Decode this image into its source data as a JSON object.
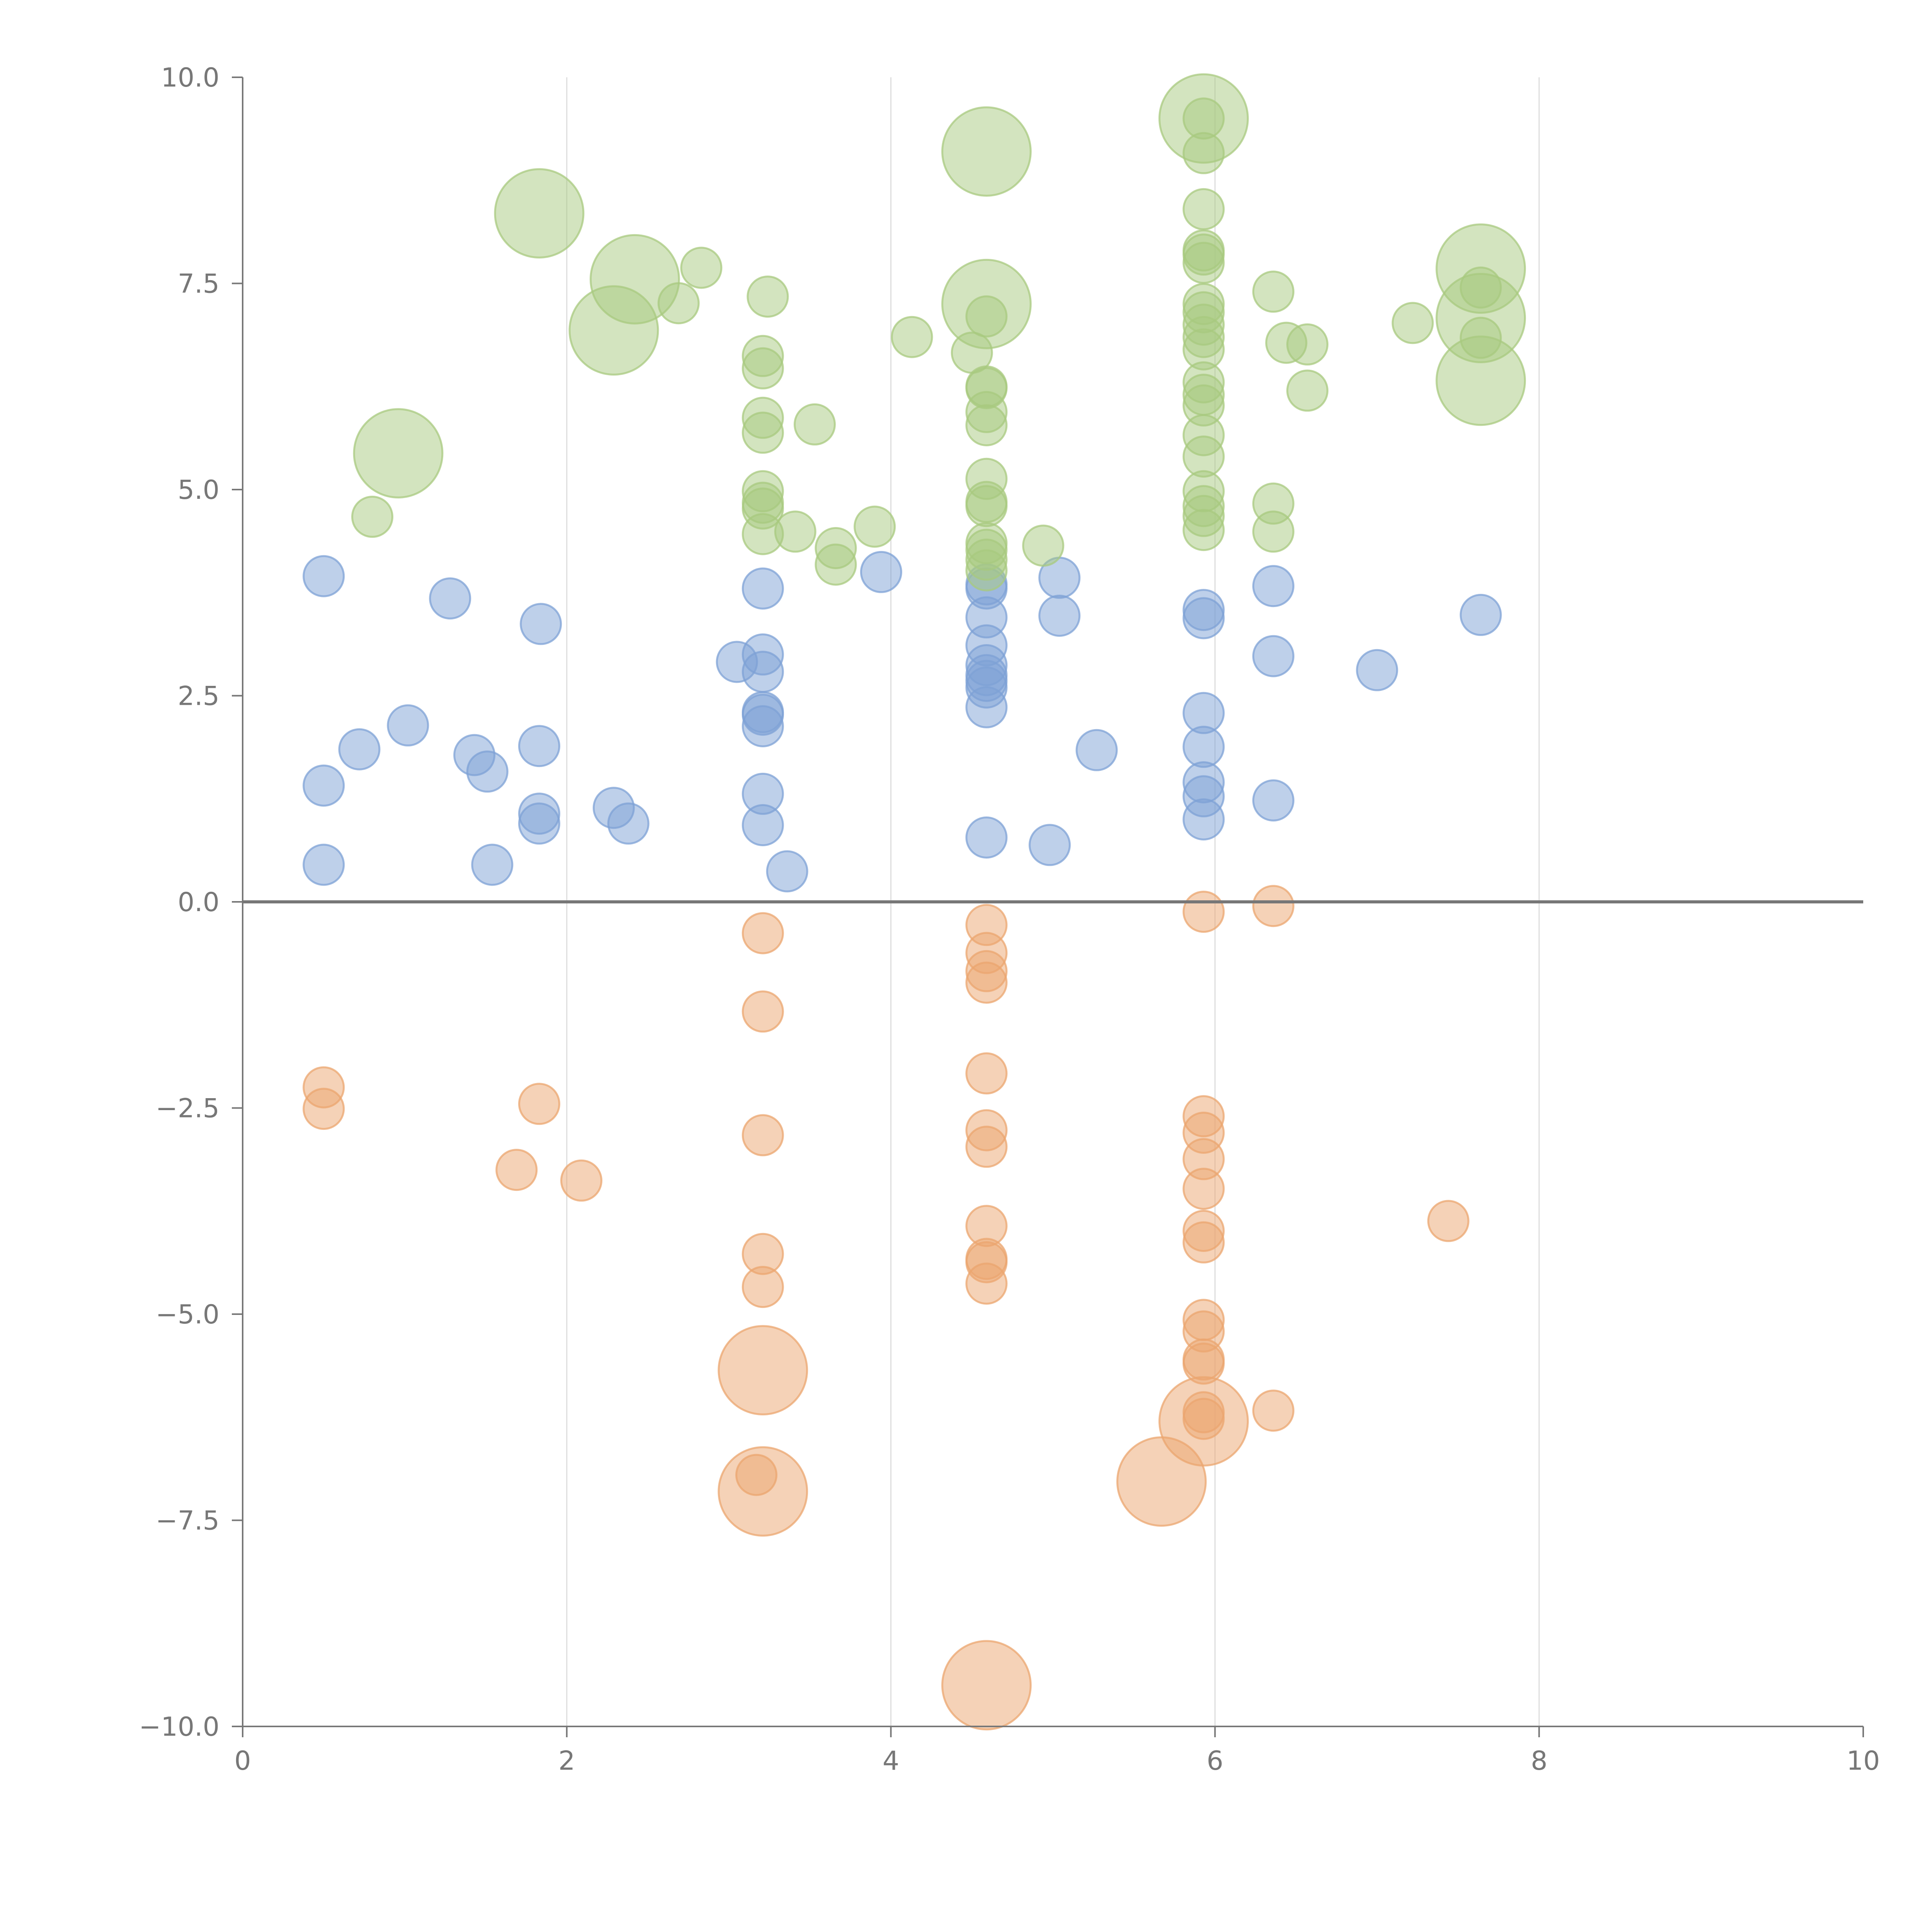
{
  "chart_data": {
    "type": "scatter",
    "title": "",
    "xlabel": "",
    "ylabel": "",
    "xlim": [
      0,
      10
    ],
    "ylim": [
      -10,
      10
    ],
    "x_ticks": [
      0,
      2,
      4,
      6,
      8,
      10
    ],
    "x_tick_labels": [
      "0",
      "2",
      "4",
      "6",
      "8",
      "10"
    ],
    "y_ticks": [
      -10,
      -7.5,
      -5,
      -2.5,
      0,
      2.5,
      5,
      7.5,
      10
    ],
    "y_tick_labels": [
      "−10.0",
      "−7.5",
      "−5.0",
      "−2.5",
      "0.0",
      "2.5",
      "5.0",
      "7.5",
      "10.0"
    ],
    "grid": {
      "vertical": true,
      "horizontal": false
    },
    "zero_line": true,
    "legend": "none",
    "series": [
      {
        "color": "#7ea2d6",
        "points": [
          {
            "x": 0.5,
            "y": 3.95,
            "s": 1
          },
          {
            "x": 1.28,
            "y": 3.68,
            "s": 1
          },
          {
            "x": 1.84,
            "y": 3.37,
            "s": 1
          },
          {
            "x": 0.72,
            "y": 1.85,
            "s": 1
          },
          {
            "x": 1.02,
            "y": 2.14,
            "s": 1
          },
          {
            "x": 1.43,
            "y": 1.78,
            "s": 1
          },
          {
            "x": 1.51,
            "y": 1.58,
            "s": 1
          },
          {
            "x": 1.83,
            "y": 1.89,
            "s": 1
          },
          {
            "x": 0.5,
            "y": 1.41,
            "s": 1
          },
          {
            "x": 1.83,
            "y": 1.07,
            "s": 1
          },
          {
            "x": 1.83,
            "y": 0.95,
            "s": 1
          },
          {
            "x": 2.29,
            "y": 1.14,
            "s": 1
          },
          {
            "x": 2.38,
            "y": 0.95,
            "s": 1
          },
          {
            "x": 0.5,
            "y": 0.45,
            "s": 1
          },
          {
            "x": 1.54,
            "y": 0.45,
            "s": 1
          },
          {
            "x": 3.05,
            "y": 2.91,
            "s": 1
          },
          {
            "x": 3.21,
            "y": 3.8,
            "s": 1
          },
          {
            "x": 3.21,
            "y": 3.0,
            "s": 1
          },
          {
            "x": 3.21,
            "y": 2.79,
            "s": 1
          },
          {
            "x": 3.21,
            "y": 2.3,
            "s": 1
          },
          {
            "x": 3.21,
            "y": 2.27,
            "s": 1
          },
          {
            "x": 3.21,
            "y": 2.13,
            "s": 1
          },
          {
            "x": 3.21,
            "y": 1.31,
            "s": 1
          },
          {
            "x": 3.21,
            "y": 0.93,
            "s": 1
          },
          {
            "x": 3.36,
            "y": 0.37,
            "s": 1
          },
          {
            "x": 3.94,
            "y": 4.0,
            "s": 1
          },
          {
            "x": 4.59,
            "y": 3.85,
            "s": 1
          },
          {
            "x": 4.59,
            "y": 3.8,
            "s": 1
          },
          {
            "x": 4.59,
            "y": 3.45,
            "s": 1
          },
          {
            "x": 4.59,
            "y": 3.11,
            "s": 1
          },
          {
            "x": 4.59,
            "y": 2.87,
            "s": 1
          },
          {
            "x": 4.59,
            "y": 2.75,
            "s": 1
          },
          {
            "x": 4.59,
            "y": 2.68,
            "s": 1
          },
          {
            "x": 4.59,
            "y": 2.6,
            "s": 1
          },
          {
            "x": 4.59,
            "y": 2.36,
            "s": 1
          },
          {
            "x": 4.59,
            "y": 0.78,
            "s": 1
          },
          {
            "x": 5.04,
            "y": 3.93,
            "s": 1
          },
          {
            "x": 5.04,
            "y": 3.47,
            "s": 1
          },
          {
            "x": 4.98,
            "y": 0.69,
            "s": 1
          },
          {
            "x": 5.27,
            "y": 1.84,
            "s": 1
          },
          {
            "x": 5.93,
            "y": 3.54,
            "s": 1
          },
          {
            "x": 5.93,
            "y": 3.44,
            "s": 1
          },
          {
            "x": 5.93,
            "y": 2.29,
            "s": 1
          },
          {
            "x": 5.93,
            "y": 1.88,
            "s": 1
          },
          {
            "x": 5.93,
            "y": 1.45,
            "s": 1
          },
          {
            "x": 5.93,
            "y": 1.28,
            "s": 1
          },
          {
            "x": 5.93,
            "y": 1.0,
            "s": 1
          },
          {
            "x": 6.36,
            "y": 3.83,
            "s": 1
          },
          {
            "x": 6.36,
            "y": 2.98,
            "s": 1
          },
          {
            "x": 6.36,
            "y": 1.23,
            "s": 1
          },
          {
            "x": 7.0,
            "y": 2.81,
            "s": 1
          },
          {
            "x": 7.64,
            "y": 3.48,
            "s": 1
          }
        ]
      },
      {
        "color": "#eba56f",
        "points": [
          {
            "x": 0.5,
            "y": -2.25,
            "s": 1
          },
          {
            "x": 0.5,
            "y": -2.51,
            "s": 1
          },
          {
            "x": 1.83,
            "y": -2.45,
            "s": 1
          },
          {
            "x": 1.69,
            "y": -3.25,
            "s": 1
          },
          {
            "x": 2.09,
            "y": -3.38,
            "s": 1
          },
          {
            "x": 3.21,
            "y": -0.38,
            "s": 1
          },
          {
            "x": 3.21,
            "y": -1.33,
            "s": 1
          },
          {
            "x": 3.21,
            "y": -2.83,
            "s": 1
          },
          {
            "x": 3.21,
            "y": -4.27,
            "s": 1
          },
          {
            "x": 3.21,
            "y": -4.67,
            "s": 1
          },
          {
            "x": 3.21,
            "y": -5.68,
            "s": 2.2
          },
          {
            "x": 3.21,
            "y": -7.15,
            "s": 2.2
          },
          {
            "x": 3.17,
            "y": -6.95,
            "s": 1
          },
          {
            "x": 4.59,
            "y": -0.28,
            "s": 1
          },
          {
            "x": 4.59,
            "y": -0.62,
            "s": 1
          },
          {
            "x": 4.59,
            "y": -0.84,
            "s": 1
          },
          {
            "x": 4.59,
            "y": -0.98,
            "s": 1
          },
          {
            "x": 4.59,
            "y": -2.08,
            "s": 1
          },
          {
            "x": 4.59,
            "y": -2.77,
            "s": 1
          },
          {
            "x": 4.59,
            "y": -2.97,
            "s": 1
          },
          {
            "x": 4.59,
            "y": -3.93,
            "s": 1
          },
          {
            "x": 4.59,
            "y": -4.33,
            "s": 1
          },
          {
            "x": 4.59,
            "y": -4.37,
            "s": 1
          },
          {
            "x": 4.59,
            "y": -4.63,
            "s": 1
          },
          {
            "x": 4.59,
            "y": -9.5,
            "s": 2.2
          },
          {
            "x": 5.67,
            "y": -7.03,
            "s": 2.2
          },
          {
            "x": 5.93,
            "y": -0.12,
            "s": 1
          },
          {
            "x": 5.93,
            "y": -2.6,
            "s": 1
          },
          {
            "x": 5.93,
            "y": -2.8,
            "s": 1
          },
          {
            "x": 5.93,
            "y": -3.12,
            "s": 1
          },
          {
            "x": 5.93,
            "y": -3.48,
            "s": 1
          },
          {
            "x": 5.93,
            "y": -3.99,
            "s": 1
          },
          {
            "x": 5.93,
            "y": -4.13,
            "s": 1
          },
          {
            "x": 5.93,
            "y": -5.07,
            "s": 1
          },
          {
            "x": 5.93,
            "y": -5.21,
            "s": 1
          },
          {
            "x": 5.93,
            "y": -5.55,
            "s": 1
          },
          {
            "x": 5.93,
            "y": -5.6,
            "s": 1
          },
          {
            "x": 5.93,
            "y": -6.19,
            "s": 1
          },
          {
            "x": 5.93,
            "y": -6.27,
            "s": 1
          },
          {
            "x": 5.93,
            "y": -6.3,
            "s": 2.2
          },
          {
            "x": 6.36,
            "y": -0.05,
            "s": 1
          },
          {
            "x": 6.36,
            "y": -6.17,
            "s": 1
          },
          {
            "x": 7.44,
            "y": -3.87,
            "s": 1
          }
        ]
      },
      {
        "color": "#a8c97f",
        "points": [
          {
            "x": 0.8,
            "y": 4.67,
            "s": 1
          },
          {
            "x": 0.96,
            "y": 5.44,
            "s": 2.2
          },
          {
            "x": 1.83,
            "y": 8.35,
            "s": 2.2
          },
          {
            "x": 2.29,
            "y": 6.93,
            "s": 2.2
          },
          {
            "x": 2.42,
            "y": 7.55,
            "s": 2.2
          },
          {
            "x": 2.69,
            "y": 7.26,
            "s": 1
          },
          {
            "x": 2.83,
            "y": 7.69,
            "s": 1
          },
          {
            "x": 3.21,
            "y": 6.62,
            "s": 1
          },
          {
            "x": 3.21,
            "y": 6.47,
            "s": 1
          },
          {
            "x": 3.21,
            "y": 5.87,
            "s": 1
          },
          {
            "x": 3.21,
            "y": 5.69,
            "s": 1
          },
          {
            "x": 3.21,
            "y": 4.98,
            "s": 1
          },
          {
            "x": 3.21,
            "y": 4.84,
            "s": 1
          },
          {
            "x": 3.21,
            "y": 4.77,
            "s": 1
          },
          {
            "x": 3.21,
            "y": 4.46,
            "s": 1
          },
          {
            "x": 3.24,
            "y": 7.34,
            "s": 1
          },
          {
            "x": 3.41,
            "y": 4.49,
            "s": 1
          },
          {
            "x": 3.53,
            "y": 5.79,
            "s": 1
          },
          {
            "x": 3.66,
            "y": 4.29,
            "s": 1
          },
          {
            "x": 3.66,
            "y": 4.09,
            "s": 1
          },
          {
            "x": 3.9,
            "y": 4.55,
            "s": 1
          },
          {
            "x": 4.13,
            "y": 6.85,
            "s": 1
          },
          {
            "x": 4.5,
            "y": 6.66,
            "s": 1
          },
          {
            "x": 4.59,
            "y": 9.1,
            "s": 2.2
          },
          {
            "x": 4.59,
            "y": 7.25,
            "s": 2.2
          },
          {
            "x": 4.59,
            "y": 7.1,
            "s": 1
          },
          {
            "x": 4.59,
            "y": 6.25,
            "s": 1
          },
          {
            "x": 4.59,
            "y": 6.23,
            "s": 1
          },
          {
            "x": 4.59,
            "y": 5.94,
            "s": 1
          },
          {
            "x": 4.59,
            "y": 5.78,
            "s": 1
          },
          {
            "x": 4.59,
            "y": 5.13,
            "s": 1
          },
          {
            "x": 4.59,
            "y": 4.85,
            "s": 1
          },
          {
            "x": 4.59,
            "y": 4.8,
            "s": 1
          },
          {
            "x": 4.59,
            "y": 4.35,
            "s": 1
          },
          {
            "x": 4.59,
            "y": 4.27,
            "s": 1
          },
          {
            "x": 4.59,
            "y": 4.15,
            "s": 1
          },
          {
            "x": 4.59,
            "y": 4.02,
            "s": 1
          },
          {
            "x": 4.94,
            "y": 4.32,
            "s": 1
          },
          {
            "x": 5.93,
            "y": 9.5,
            "s": 2.2
          },
          {
            "x": 5.93,
            "y": 9.5,
            "s": 1
          },
          {
            "x": 5.93,
            "y": 9.08,
            "s": 1
          },
          {
            "x": 5.93,
            "y": 8.4,
            "s": 1
          },
          {
            "x": 5.93,
            "y": 7.9,
            "s": 1
          },
          {
            "x": 5.93,
            "y": 7.85,
            "s": 1
          },
          {
            "x": 5.93,
            "y": 7.75,
            "s": 1
          },
          {
            "x": 5.93,
            "y": 7.25,
            "s": 1
          },
          {
            "x": 5.93,
            "y": 7.15,
            "s": 1
          },
          {
            "x": 5.93,
            "y": 7.0,
            "s": 1
          },
          {
            "x": 5.93,
            "y": 6.85,
            "s": 1
          },
          {
            "x": 5.93,
            "y": 6.7,
            "s": 1
          },
          {
            "x": 5.93,
            "y": 6.3,
            "s": 1
          },
          {
            "x": 5.93,
            "y": 6.15,
            "s": 1
          },
          {
            "x": 5.93,
            "y": 6.02,
            "s": 1
          },
          {
            "x": 5.93,
            "y": 5.66,
            "s": 1
          },
          {
            "x": 5.93,
            "y": 5.4,
            "s": 1
          },
          {
            "x": 5.93,
            "y": 4.98,
            "s": 1
          },
          {
            "x": 5.93,
            "y": 4.8,
            "s": 1
          },
          {
            "x": 5.93,
            "y": 4.68,
            "s": 1
          },
          {
            "x": 5.93,
            "y": 4.51,
            "s": 1
          },
          {
            "x": 6.36,
            "y": 7.4,
            "s": 1
          },
          {
            "x": 6.36,
            "y": 4.83,
            "s": 1
          },
          {
            "x": 6.36,
            "y": 4.49,
            "s": 1
          },
          {
            "x": 6.44,
            "y": 6.78,
            "s": 1
          },
          {
            "x": 6.57,
            "y": 6.76,
            "s": 1
          },
          {
            "x": 6.57,
            "y": 6.2,
            "s": 1
          },
          {
            "x": 7.22,
            "y": 7.02,
            "s": 1
          },
          {
            "x": 7.64,
            "y": 7.68,
            "s": 2.2
          },
          {
            "x": 7.64,
            "y": 7.45,
            "s": 1
          },
          {
            "x": 7.64,
            "y": 7.08,
            "s": 2.2
          },
          {
            "x": 7.64,
            "y": 6.84,
            "s": 1
          },
          {
            "x": 7.64,
            "y": 6.32,
            "s": 2.2
          }
        ]
      }
    ]
  }
}
